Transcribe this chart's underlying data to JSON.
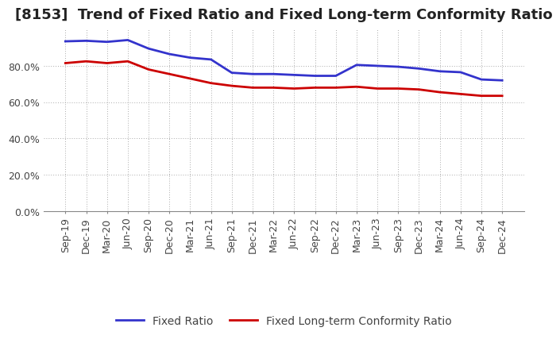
{
  "title": "[8153]  Trend of Fixed Ratio and Fixed Long-term Conformity Ratio",
  "x_labels": [
    "Sep-19",
    "Dec-19",
    "Mar-20",
    "Jun-20",
    "Sep-20",
    "Dec-20",
    "Mar-21",
    "Jun-21",
    "Sep-21",
    "Dec-21",
    "Mar-22",
    "Jun-22",
    "Sep-22",
    "Dec-22",
    "Mar-23",
    "Jun-23",
    "Sep-23",
    "Dec-23",
    "Mar-24",
    "Jun-24",
    "Sep-24",
    "Dec-24"
  ],
  "fixed_ratio": [
    93.5,
    93.8,
    93.2,
    94.2,
    89.5,
    86.5,
    84.5,
    83.5,
    76.2,
    75.5,
    75.5,
    75.0,
    74.5,
    74.5,
    80.5,
    80.0,
    79.5,
    78.5,
    77.0,
    76.5,
    72.5,
    72.0
  ],
  "fixed_lt_ratio": [
    81.5,
    82.5,
    81.5,
    82.5,
    78.0,
    75.5,
    73.0,
    70.5,
    69.0,
    68.0,
    68.0,
    67.5,
    68.0,
    68.0,
    68.5,
    67.5,
    67.5,
    67.0,
    65.5,
    64.5,
    63.5,
    63.5
  ],
  "fixed_ratio_color": "#3333cc",
  "fixed_lt_ratio_color": "#cc0000",
  "background_color": "#ffffff",
  "grid_color": "#aaaaaa",
  "ylim": [
    0,
    100
  ],
  "yticks": [
    0,
    20,
    40,
    60,
    80
  ],
  "ytick_labels": [
    "0.0%",
    "20.0%",
    "40.0%",
    "60.0%",
    "80.0%"
  ],
  "legend_fixed_ratio": "Fixed Ratio",
  "legend_fixed_lt_ratio": "Fixed Long-term Conformity Ratio",
  "title_fontsize": 13,
  "tick_fontsize": 9,
  "legend_fontsize": 10
}
